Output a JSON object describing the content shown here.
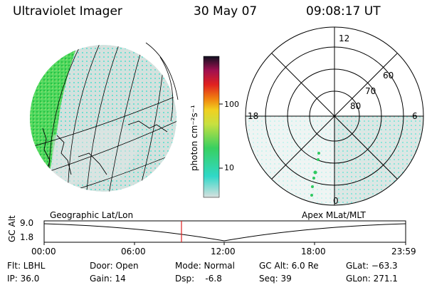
{
  "header": {
    "title": "Ultraviolet Imager",
    "date": "30 May 07",
    "time": "09:08:17 UT"
  },
  "colorbar": {
    "unit_label": "photon cm⁻²s⁻¹",
    "ticks": [
      "100",
      "10"
    ]
  },
  "polar": {
    "mlt_labels": [
      "12",
      "18",
      "6",
      "0"
    ],
    "lat_labels": [
      "60",
      "70",
      "80"
    ]
  },
  "panel_labels": {
    "left": "Geographic Lat/Lon",
    "right": "Apex  MLat/MLT"
  },
  "altitude_plot": {
    "ylabel": "GC Alt",
    "y_ticks": [
      "9.0",
      "1.8"
    ],
    "x_ticks": [
      "00:00",
      "06:00",
      "12:00",
      "18:00",
      "23:59"
    ],
    "marker_time": "09:08"
  },
  "status": {
    "filter": "Flt: LBHL",
    "ip": "IP: 36.0",
    "door": "Door: Open",
    "gain": "Gain: 14",
    "mode": "Mode: Normal",
    "dsp": "Dsp:    -6.8",
    "gc_alt": "GC Alt: 6.0 Re",
    "seq": "Seq: 39",
    "glat": "GLat: −63.3",
    "glon": "GLon: 271.1"
  },
  "colors": {
    "background": "#ffffff",
    "low_emission": "#d8e2e0",
    "cyan_emission": "#40d8c8",
    "green_emission": "#40d050",
    "marker": "#e02020"
  }
}
